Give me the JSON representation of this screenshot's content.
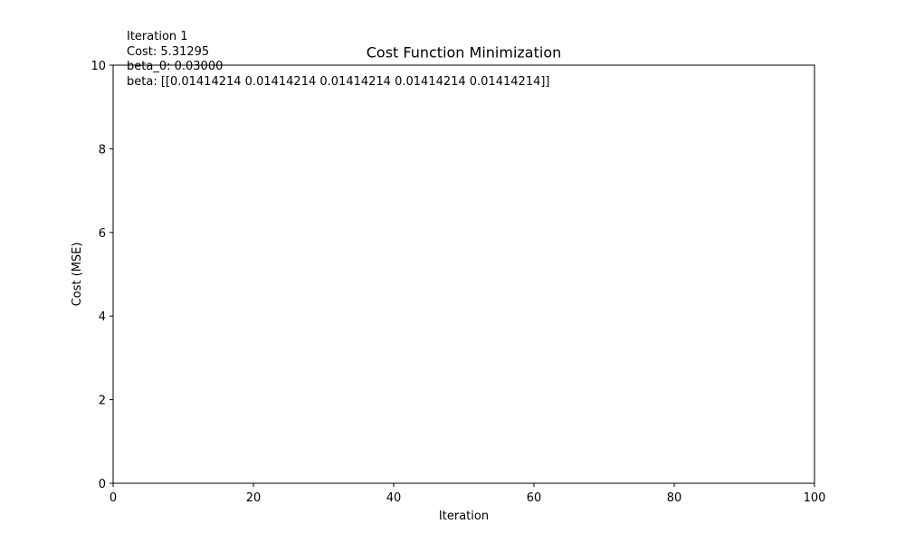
{
  "chart_data": {
    "type": "line",
    "title": "Cost Function Minimization",
    "xlabel": "Iteration",
    "ylabel": "Cost (MSE)",
    "xlim": [
      0,
      100
    ],
    "ylim": [
      0,
      10
    ],
    "xticks": [
      0,
      20,
      40,
      60,
      80,
      100
    ],
    "yticks": [
      0,
      2,
      4,
      6,
      8,
      10
    ],
    "grid": false,
    "series": [
      {
        "x": [],
        "y": []
      }
    ],
    "annotations": [
      "Iteration 1",
      "Cost: 5.31295",
      "beta_0: 0.03000",
      "beta: [[0.01414214 0.01414214 0.01414214 0.01414214 0.01414214]]"
    ]
  },
  "colors": {
    "line": "#1f77b4",
    "axes": "#000000",
    "background": "#ffffff"
  }
}
